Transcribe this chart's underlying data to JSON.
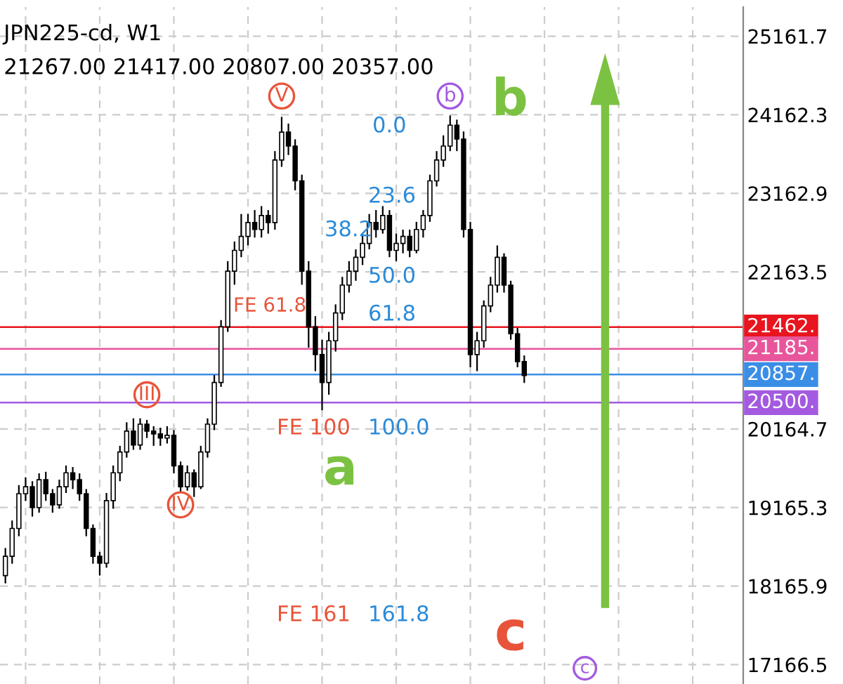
{
  "chart_data": {
    "type": "candlestick",
    "title": "JPN225-cd, W1",
    "subtitle": "21267.00 21417.00 20807.00 20357.00",
    "categories": [
      null,
      null,
      null,
      null,
      null,
      null,
      null,
      null,
      null,
      null,
      null,
      null,
      null,
      null,
      null,
      null,
      null,
      null,
      null,
      null,
      null,
      null,
      null,
      null,
      null,
      null,
      null,
      null,
      null,
      null,
      null,
      null,
      null,
      null,
      null,
      null,
      null,
      null,
      null,
      null,
      null,
      null,
      null,
      null,
      null,
      null,
      null,
      null,
      null,
      null,
      null,
      null,
      null,
      null,
      null,
      null,
      null,
      null,
      null,
      null,
      null,
      null,
      null,
      null,
      null,
      null,
      null,
      null,
      null,
      null,
      null,
      null,
      null,
      null,
      null,
      null,
      null,
      null,
      null,
      null,
      null,
      null,
      null,
      null,
      null,
      null,
      null,
      null,
      null,
      null,
      null,
      null,
      null,
      null,
      null,
      null,
      null,
      null,
      null,
      null,
      null,
      null,
      null,
      null,
      null,
      null,
      null,
      null,
      null,
      null
    ],
    "ohlc": [
      [
        18300,
        18650,
        18200,
        18545
      ],
      [
        18545,
        19000,
        18450,
        18899
      ],
      [
        18899,
        19450,
        18800,
        19341
      ],
      [
        19341,
        19550,
        19250,
        19430
      ],
      [
        19430,
        19500,
        19050,
        19165
      ],
      [
        19165,
        19600,
        19100,
        19519
      ],
      [
        19519,
        19620,
        19250,
        19341
      ],
      [
        19341,
        19400,
        19100,
        19200
      ],
      [
        19200,
        19520,
        19150,
        19430
      ],
      [
        19430,
        19700,
        19350,
        19607
      ],
      [
        19607,
        19680,
        19400,
        19519
      ],
      [
        19519,
        19600,
        19250,
        19341
      ],
      [
        19341,
        19400,
        18800,
        18899
      ],
      [
        18899,
        18950,
        18450,
        18545
      ],
      [
        18545,
        18600,
        18300,
        18457
      ],
      [
        18457,
        19350,
        18400,
        19253
      ],
      [
        19253,
        19700,
        19150,
        19607
      ],
      [
        19607,
        19950,
        19500,
        19872
      ],
      [
        19872,
        20250,
        19800,
        20138
      ],
      [
        20138,
        20300,
        19900,
        19961
      ],
      [
        19961,
        20300,
        19900,
        20226
      ],
      [
        20226,
        20280,
        20050,
        20138
      ],
      [
        20138,
        20200,
        19950,
        20102
      ],
      [
        20102,
        20180,
        19950,
        20049
      ],
      [
        20049,
        20200,
        19980,
        20084
      ],
      [
        20084,
        20150,
        19600,
        19695
      ],
      [
        19695,
        19750,
        19350,
        19430
      ],
      [
        19430,
        19700,
        19380,
        19607
      ],
      [
        19607,
        19650,
        19300,
        19430
      ],
      [
        19430,
        19950,
        19400,
        19872
      ],
      [
        19872,
        20300,
        19800,
        20226
      ],
      [
        20226,
        20850,
        20150,
        20757
      ],
      [
        20757,
        21550,
        20700,
        21464
      ],
      [
        21464,
        22300,
        21400,
        22172
      ],
      [
        22172,
        22550,
        22000,
        22437
      ],
      [
        22437,
        22900,
        22350,
        22614
      ],
      [
        22614,
        22900,
        22500,
        22791
      ],
      [
        22791,
        22950,
        22600,
        22703
      ],
      [
        22703,
        23000,
        22600,
        22880
      ],
      [
        22880,
        22950,
        22650,
        22791
      ],
      [
        22791,
        23700,
        22700,
        23587
      ],
      [
        23587,
        24136,
        23500,
        23941
      ],
      [
        23941,
        24050,
        23650,
        23764
      ],
      [
        23764,
        23850,
        23200,
        23322
      ],
      [
        23322,
        23400,
        22000,
        22172
      ],
      [
        22172,
        22300,
        21200,
        21464
      ],
      [
        21464,
        21600,
        20900,
        21111
      ],
      [
        21111,
        21300,
        20403,
        20757
      ],
      [
        20757,
        21400,
        20600,
        21287
      ],
      [
        21287,
        21750,
        21150,
        21641
      ],
      [
        21641,
        22100,
        21550,
        21995
      ],
      [
        21995,
        22300,
        21900,
        22172
      ],
      [
        22172,
        22450,
        22050,
        22349
      ],
      [
        22349,
        22650,
        22250,
        22525
      ],
      [
        22525,
        22900,
        22450,
        22791
      ],
      [
        22791,
        22950,
        22600,
        22703
      ],
      [
        22703,
        23000,
        22650,
        22880
      ],
      [
        22880,
        22950,
        22350,
        22437
      ],
      [
        22437,
        22650,
        22300,
        22525
      ],
      [
        22525,
        22700,
        22400,
        22614
      ],
      [
        22614,
        22700,
        22350,
        22437
      ],
      [
        22437,
        22800,
        22400,
        22703
      ],
      [
        22703,
        22950,
        22600,
        22880
      ],
      [
        22880,
        23400,
        22800,
        23322
      ],
      [
        23322,
        23700,
        23250,
        23587
      ],
      [
        23587,
        23900,
        23500,
        23764
      ],
      [
        23764,
        24153,
        23700,
        24030
      ],
      [
        24030,
        24100,
        23700,
        23853
      ],
      [
        23853,
        23950,
        22600,
        22703
      ],
      [
        22703,
        22800,
        20950,
        21111
      ],
      [
        21111,
        21400,
        20900,
        21287
      ],
      [
        21287,
        21800,
        21200,
        21730
      ],
      [
        21730,
        22100,
        21650,
        21995
      ],
      [
        21995,
        22500,
        21900,
        22349
      ],
      [
        22349,
        22400,
        21900,
        21995
      ],
      [
        21995,
        22050,
        21300,
        21376
      ],
      [
        21376,
        21450,
        20950,
        21022
      ],
      [
        21022,
        21100,
        20750,
        20845
      ],
      null,
      null,
      null,
      null,
      null,
      null,
      null,
      null,
      null,
      null,
      null,
      null,
      null,
      null,
      null,
      null,
      null,
      null,
      null,
      null,
      null,
      null,
      null,
      null,
      null,
      null,
      null,
      null,
      null,
      null,
      null,
      null
    ],
    "ylim": [
      16920,
      25533
    ],
    "yticks": [
      25161.7,
      24162.3,
      23162.9,
      22163.5,
      20164.7,
      19165.3,
      18165.9,
      17166.5
    ],
    "tick_labels": "y",
    "grid": true,
    "legend": false,
    "ref_lines": [
      {
        "axis": "y",
        "value": 21462,
        "label": "21462.",
        "color": "#e8141e"
      },
      {
        "axis": "y",
        "value": 21185,
        "label": "21185.",
        "color": "#e8559a"
      },
      {
        "axis": "y",
        "value": 20857,
        "label": "20857.",
        "color": "#3a8ee6"
      },
      {
        "axis": "y",
        "value": 20500,
        "label": "20500.",
        "color": "#a35ae0"
      }
    ],
    "annotations": [
      {
        "text": "III",
        "y": 20600
      },
      {
        "text": "IV",
        "y": 19200
      },
      {
        "text": "V",
        "y": 24400
      },
      {
        "text": "b",
        "y": 24400
      },
      {
        "text": "c",
        "y": 17120
      },
      "0.0",
      "23.6",
      "38.2",
      "50.0",
      "61.8",
      "FE 61.8",
      "FE 100",
      "100.0",
      "FE 161",
      "161.8",
      "a",
      "b",
      "c"
    ]
  }
}
